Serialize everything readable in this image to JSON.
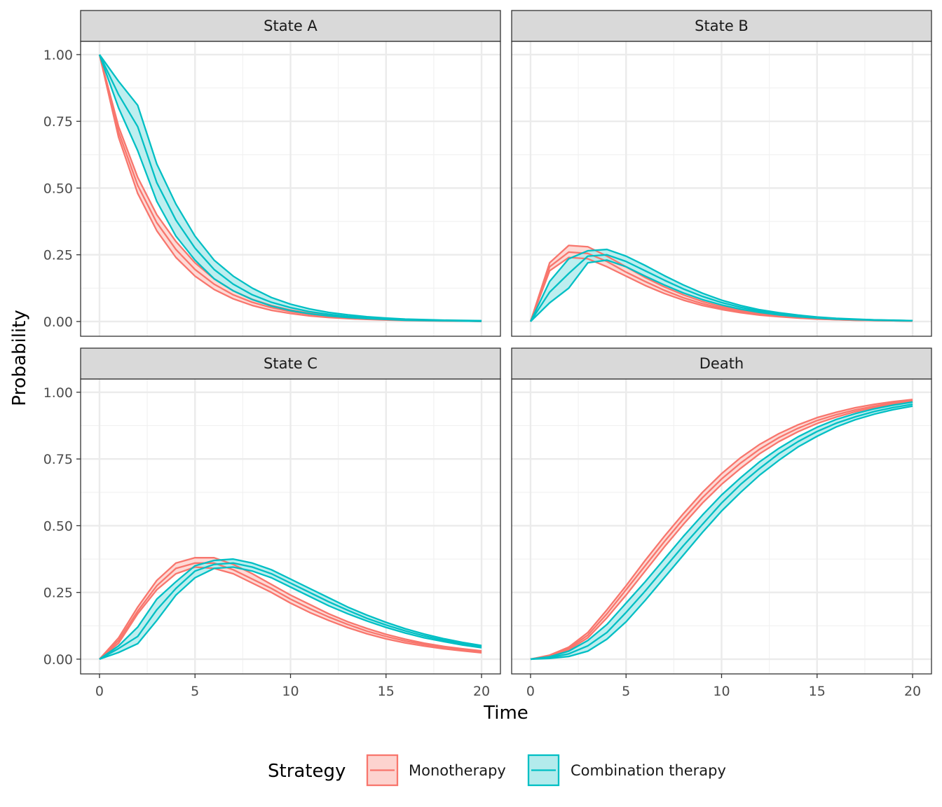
{
  "chart_data": {
    "type": "line",
    "layout": "facet-grid-2x2",
    "xlabel": "Time",
    "ylabel": "Probability",
    "xlim": [
      0,
      20
    ],
    "ylim": [
      0,
      1.1
    ],
    "x_ticks": [
      0,
      5,
      10,
      15,
      20
    ],
    "x_tick_labels": [
      "0",
      "5",
      "10",
      "15",
      "20"
    ],
    "y_ticks": [
      0,
      0.25,
      0.5,
      0.75,
      1
    ],
    "y_tick_labels": [
      "0.00",
      "0.25",
      "0.50",
      "0.75",
      "1.00"
    ],
    "grid": true,
    "legend": {
      "title": "Strategy",
      "position": "bottom",
      "entries": [
        {
          "label": "Monotherapy",
          "color": "#F8766D",
          "fill": "#FDD3CF"
        },
        {
          "label": "Combination therapy",
          "color": "#00BFC4",
          "fill": "#B3EBEC"
        }
      ]
    },
    "x": [
      0,
      1,
      2,
      3,
      4,
      5,
      6,
      7,
      8,
      9,
      10,
      11,
      12,
      13,
      14,
      15,
      16,
      17,
      18,
      19,
      20
    ],
    "panels": [
      {
        "title": "State A",
        "series": [
          {
            "name": "Monotherapy",
            "lower": [
              1,
              0.69,
              0.48,
              0.34,
              0.24,
              0.17,
              0.12,
              0.085,
              0.06,
              0.042,
              0.03,
              0.021,
              0.015,
              0.011,
              0.008,
              0.006,
              0.004,
              0.003,
              0.002,
              0.002,
              0.001
            ],
            "mean": [
              1,
              0.71,
              0.51,
              0.37,
              0.27,
              0.195,
              0.14,
              0.1,
              0.072,
              0.052,
              0.037,
              0.027,
              0.019,
              0.014,
              0.01,
              0.007,
              0.005,
              0.004,
              0.003,
              0.002,
              0.001
            ],
            "upper": [
              1,
              0.73,
              0.54,
              0.4,
              0.3,
              0.22,
              0.16,
              0.115,
              0.083,
              0.06,
              0.043,
              0.031,
              0.022,
              0.016,
              0.012,
              0.008,
              0.006,
              0.004,
              0.003,
              0.002,
              0.001
            ]
          },
          {
            "name": "Combination therapy",
            "lower": [
              1,
              0.8,
              0.64,
              0.45,
              0.32,
              0.23,
              0.16,
              0.115,
              0.082,
              0.058,
              0.041,
              0.029,
              0.021,
              0.015,
              0.011,
              0.008,
              0.005,
              0.004,
              0.003,
              0.002,
              0.001
            ],
            "mean": [
              1,
              0.85,
              0.73,
              0.52,
              0.38,
              0.275,
              0.195,
              0.14,
              0.1,
              0.072,
              0.052,
              0.037,
              0.027,
              0.019,
              0.014,
              0.01,
              0.007,
              0.005,
              0.004,
              0.003,
              0.002
            ],
            "upper": [
              1,
              0.9,
              0.81,
              0.59,
              0.44,
              0.32,
              0.23,
              0.17,
              0.125,
              0.09,
              0.065,
              0.047,
              0.034,
              0.025,
              0.018,
              0.013,
              0.009,
              0.007,
              0.005,
              0.004,
              0.003
            ]
          }
        ]
      },
      {
        "title": "State B",
        "series": [
          {
            "name": "Monotherapy",
            "lower": [
              0,
              0.19,
              0.24,
              0.235,
              0.205,
              0.17,
              0.135,
              0.105,
              0.08,
              0.06,
              0.045,
              0.033,
              0.024,
              0.018,
              0.013,
              0.009,
              0.007,
              0.005,
              0.004,
              0.003,
              0.002
            ],
            "mean": [
              0,
              0.205,
              0.26,
              0.255,
              0.225,
              0.185,
              0.15,
              0.117,
              0.089,
              0.067,
              0.05,
              0.037,
              0.027,
              0.02,
              0.014,
              0.01,
              0.007,
              0.005,
              0.004,
              0.003,
              0.002
            ],
            "upper": [
              0,
              0.22,
              0.285,
              0.28,
              0.245,
              0.205,
              0.165,
              0.13,
              0.1,
              0.075,
              0.056,
              0.041,
              0.03,
              0.022,
              0.016,
              0.011,
              0.008,
              0.006,
              0.004,
              0.003,
              0.002
            ]
          },
          {
            "name": "Combination therapy",
            "lower": [
              0,
              0.07,
              0.125,
              0.22,
              0.23,
              0.205,
              0.17,
              0.137,
              0.107,
              0.082,
              0.062,
              0.046,
              0.034,
              0.025,
              0.018,
              0.013,
              0.009,
              0.007,
              0.005,
              0.004,
              0.003
            ],
            "mean": [
              0,
              0.11,
              0.18,
              0.245,
              0.25,
              0.225,
              0.19,
              0.155,
              0.122,
              0.094,
              0.071,
              0.053,
              0.039,
              0.029,
              0.021,
              0.015,
              0.011,
              0.008,
              0.006,
              0.004,
              0.003
            ],
            "upper": [
              0,
              0.15,
              0.235,
              0.265,
              0.27,
              0.245,
              0.21,
              0.172,
              0.137,
              0.106,
              0.08,
              0.06,
              0.044,
              0.033,
              0.024,
              0.017,
              0.012,
              0.009,
              0.006,
              0.005,
              0.003
            ]
          }
        ]
      },
      {
        "title": "State C",
        "series": [
          {
            "name": "Monotherapy",
            "lower": [
              0,
              0.06,
              0.17,
              0.26,
              0.32,
              0.345,
              0.34,
              0.32,
              0.285,
              0.25,
              0.21,
              0.175,
              0.145,
              0.118,
              0.095,
              0.076,
              0.061,
              0.049,
              0.039,
              0.031,
              0.024
            ],
            "mean": [
              0,
              0.07,
              0.18,
              0.275,
              0.34,
              0.36,
              0.36,
              0.335,
              0.3,
              0.265,
              0.225,
              0.19,
              0.158,
              0.13,
              0.105,
              0.085,
              0.068,
              0.055,
              0.044,
              0.035,
              0.028
            ],
            "upper": [
              0,
              0.08,
              0.195,
              0.295,
              0.36,
              0.38,
              0.38,
              0.355,
              0.32,
              0.28,
              0.24,
              0.205,
              0.17,
              0.14,
              0.115,
              0.093,
              0.075,
              0.06,
              0.048,
              0.039,
              0.031
            ]
          },
          {
            "name": "Combination therapy",
            "lower": [
              0,
              0.025,
              0.058,
              0.145,
              0.24,
              0.305,
              0.34,
              0.345,
              0.33,
              0.305,
              0.27,
              0.235,
              0.2,
              0.17,
              0.143,
              0.119,
              0.098,
              0.08,
              0.066,
              0.053,
              0.043
            ],
            "mean": [
              0,
              0.04,
              0.085,
              0.185,
              0.265,
              0.33,
              0.355,
              0.36,
              0.345,
              0.32,
              0.285,
              0.25,
              0.215,
              0.183,
              0.153,
              0.128,
              0.106,
              0.087,
              0.071,
              0.058,
              0.047
            ],
            "upper": [
              0,
              0.05,
              0.12,
              0.225,
              0.29,
              0.35,
              0.37,
              0.375,
              0.36,
              0.335,
              0.3,
              0.265,
              0.23,
              0.195,
              0.165,
              0.138,
              0.114,
              0.094,
              0.077,
              0.063,
              0.051
            ]
          }
        ]
      },
      {
        "title": "Death",
        "series": [
          {
            "name": "Monotherapy",
            "lower": [
              0,
              0.01,
              0.035,
              0.08,
              0.155,
              0.24,
              0.33,
              0.42,
              0.505,
              0.585,
              0.655,
              0.715,
              0.77,
              0.815,
              0.852,
              0.883,
              0.907,
              0.927,
              0.943,
              0.955,
              0.965
            ],
            "mean": [
              0,
              0.012,
              0.04,
              0.09,
              0.17,
              0.26,
              0.35,
              0.44,
              0.525,
              0.605,
              0.675,
              0.735,
              0.787,
              0.83,
              0.865,
              0.894,
              0.916,
              0.934,
              0.948,
              0.96,
              0.969
            ],
            "upper": [
              0,
              0.015,
              0.045,
              0.1,
              0.185,
              0.275,
              0.37,
              0.46,
              0.545,
              0.625,
              0.695,
              0.755,
              0.805,
              0.845,
              0.878,
              0.905,
              0.925,
              0.942,
              0.955,
              0.965,
              0.973
            ]
          },
          {
            "name": "Combination therapy",
            "lower": [
              0,
              0.003,
              0.01,
              0.03,
              0.075,
              0.14,
              0.22,
              0.305,
              0.39,
              0.475,
              0.555,
              0.625,
              0.69,
              0.745,
              0.795,
              0.835,
              0.87,
              0.897,
              0.918,
              0.935,
              0.948
            ],
            "mean": [
              0,
              0.006,
              0.02,
              0.05,
              0.1,
              0.175,
              0.255,
              0.34,
              0.425,
              0.505,
              0.585,
              0.655,
              0.715,
              0.77,
              0.815,
              0.853,
              0.884,
              0.908,
              0.928,
              0.943,
              0.955
            ],
            "upper": [
              0,
              0.009,
              0.03,
              0.07,
              0.13,
              0.21,
              0.29,
              0.375,
              0.46,
              0.54,
              0.615,
              0.68,
              0.74,
              0.79,
              0.833,
              0.869,
              0.898,
              0.92,
              0.938,
              0.952,
              0.963
            ]
          }
        ]
      }
    ]
  }
}
